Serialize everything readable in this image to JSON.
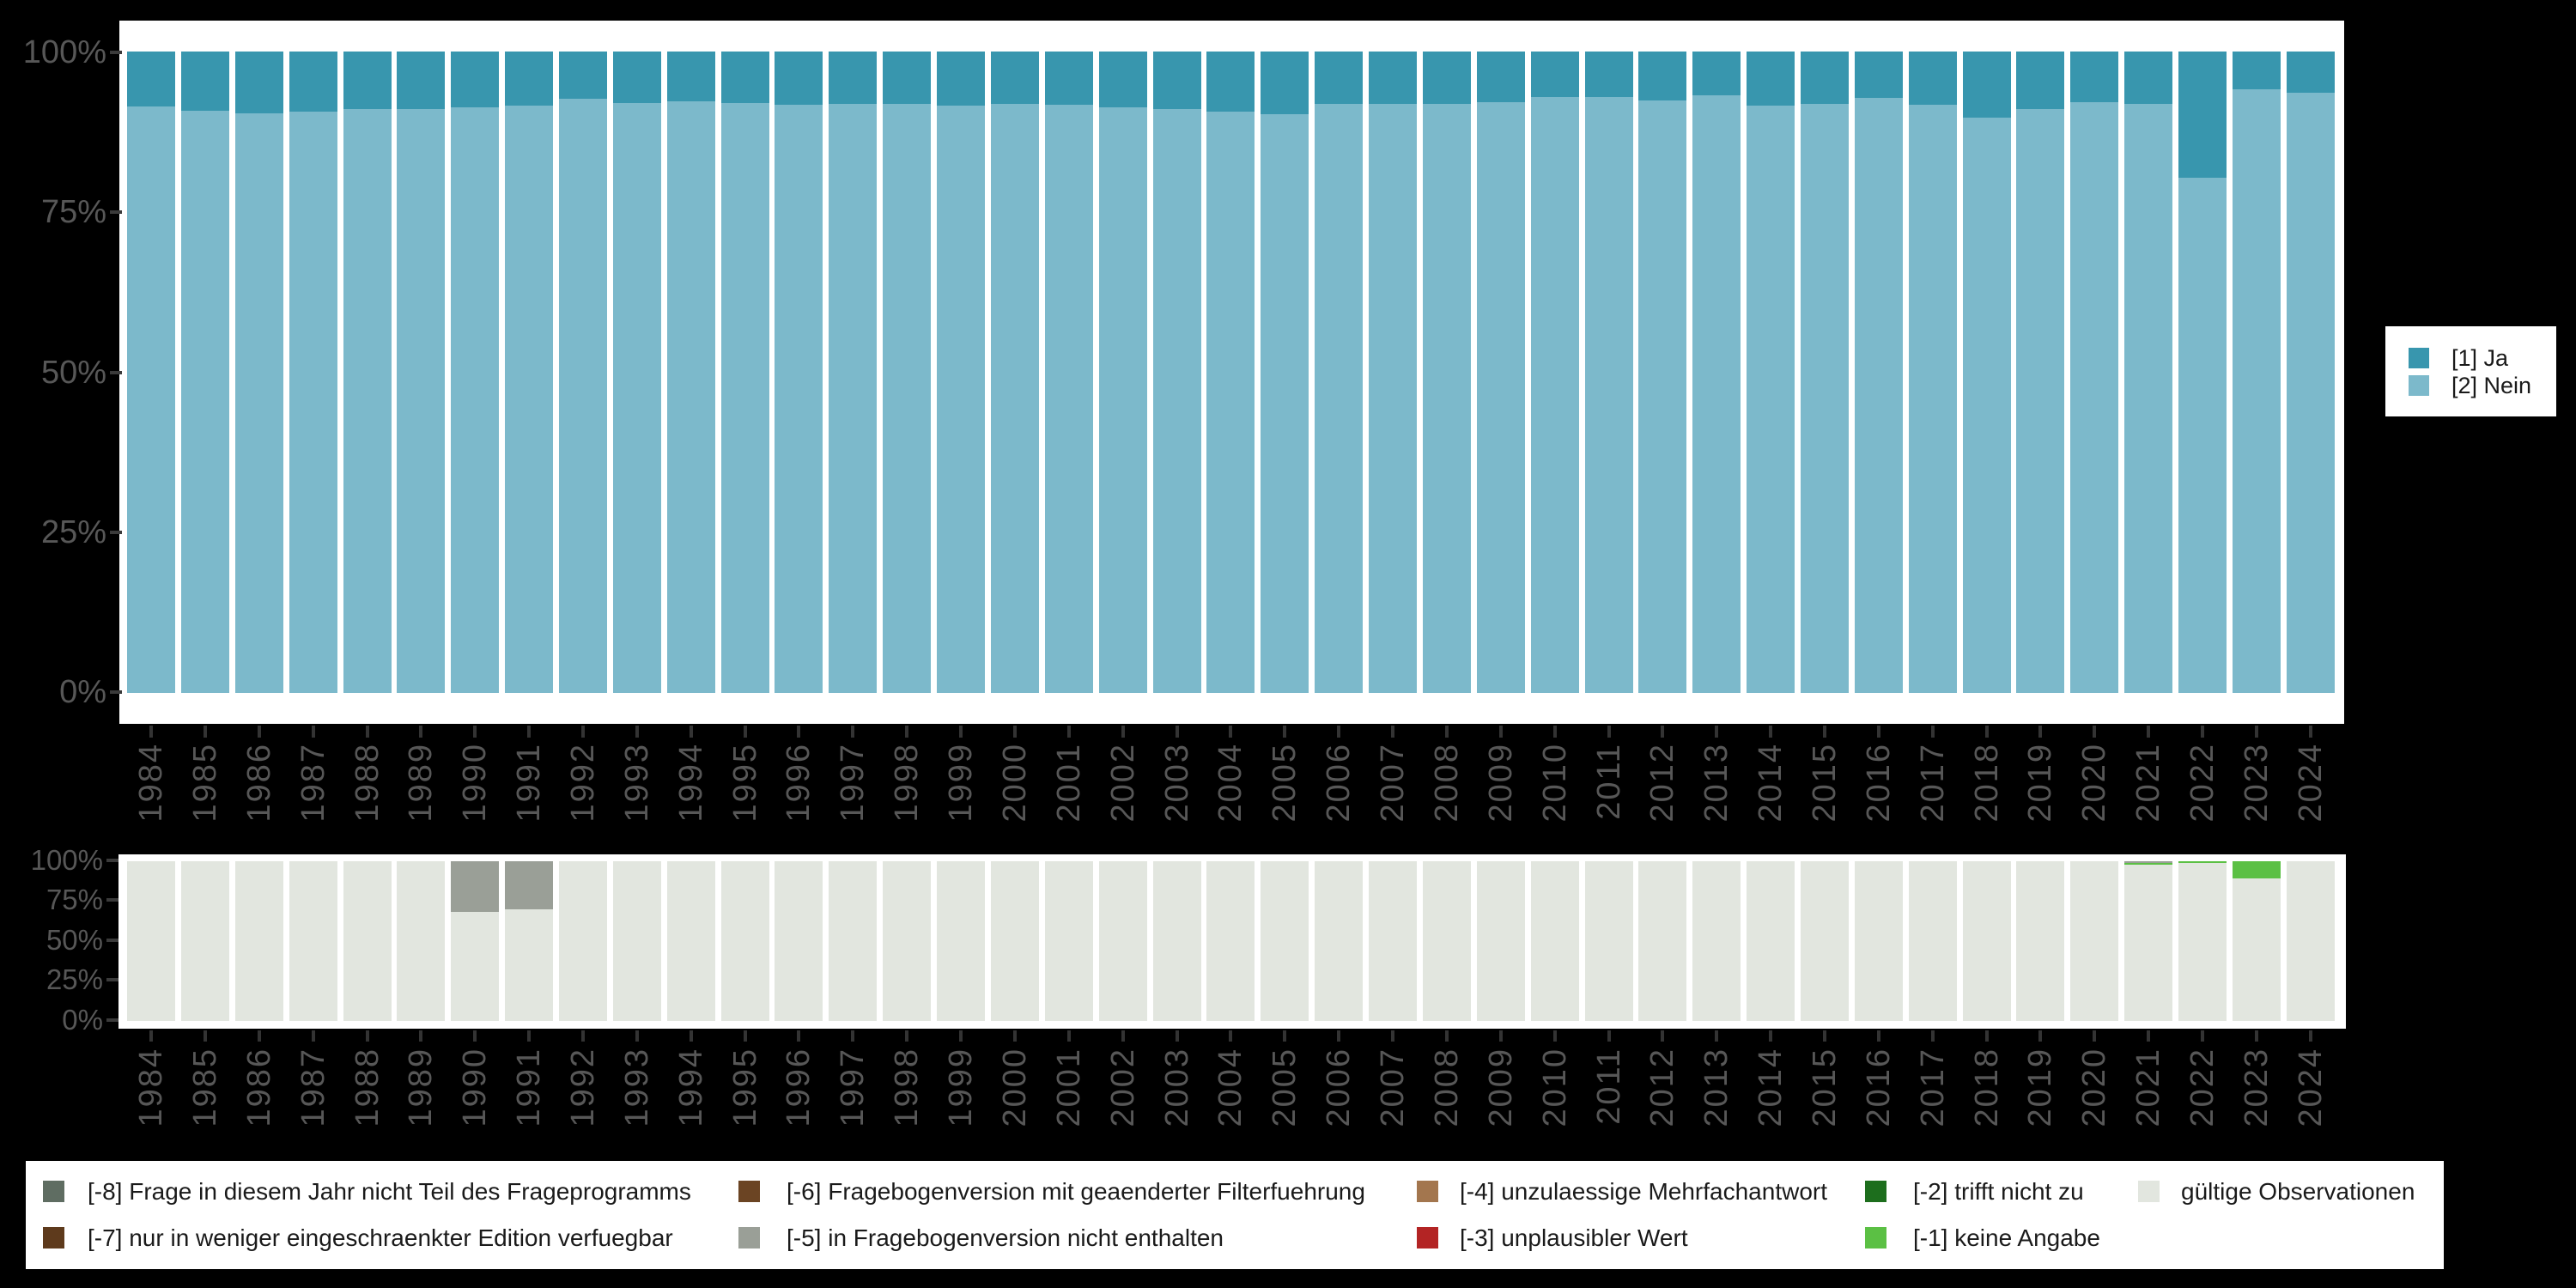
{
  "app": {
    "background": "#000000",
    "panel_background": "#ffffff",
    "axis_text_color": "#575757"
  },
  "chart_data": [
    {
      "name": "main-distribution",
      "type": "bar",
      "stacking": "percent",
      "orientation": "vertical",
      "grid": false,
      "legend_position": "right",
      "ylabel": "",
      "xlabel": "",
      "y_ticks": [
        "0%",
        "25%",
        "50%",
        "75%",
        "100%"
      ],
      "ylim": [
        0,
        100
      ],
      "categories": [
        "1984",
        "1985",
        "1986",
        "1987",
        "1988",
        "1989",
        "1990",
        "1991",
        "1992",
        "1993",
        "1994",
        "1995",
        "1996",
        "1997",
        "1998",
        "1999",
        "2000",
        "2001",
        "2002",
        "2003",
        "2004",
        "2005",
        "2006",
        "2007",
        "2008",
        "2009",
        "2010",
        "2011",
        "2012",
        "2013",
        "2014",
        "2015",
        "2016",
        "2017",
        "2018",
        "2019",
        "2020",
        "2021",
        "2022",
        "2023",
        "2024"
      ],
      "series": [
        {
          "name": "[1] Ja",
          "color": "#3896ae",
          "values": [
            8.5,
            9.2,
            9.6,
            9.3,
            8.9,
            9.0,
            8.7,
            8.4,
            7.4,
            8.0,
            7.7,
            8.0,
            8.3,
            8.1,
            8.2,
            8.4,
            8.2,
            8.3,
            8.7,
            8.9,
            9.3,
            9.7,
            8.2,
            8.1,
            8.2,
            7.9,
            7.1,
            7.1,
            7.6,
            6.8,
            8.4,
            8.1,
            7.2,
            8.3,
            10.3,
            8.9,
            7.9,
            8.2,
            19.7,
            5.9,
            6.4
          ]
        },
        {
          "name": "[2] Nein",
          "color": "#7cb9cb",
          "values": [
            91.5,
            90.8,
            90.4,
            90.7,
            91.1,
            91.0,
            91.3,
            91.6,
            92.6,
            92.0,
            92.3,
            92.0,
            91.7,
            91.9,
            91.8,
            91.6,
            91.8,
            91.7,
            91.3,
            91.1,
            90.7,
            90.3,
            91.8,
            91.9,
            91.8,
            92.1,
            92.9,
            92.9,
            92.4,
            93.2,
            91.6,
            91.9,
            92.8,
            91.7,
            89.7,
            91.1,
            92.1,
            91.8,
            80.3,
            94.1,
            93.6
          ]
        }
      ]
    },
    {
      "name": "missing-values",
      "type": "bar",
      "stacking": "percent",
      "orientation": "vertical",
      "grid": false,
      "legend_position": "bottom",
      "y_ticks": [
        "0%",
        "25%",
        "50%",
        "75%",
        "100%"
      ],
      "ylim": [
        0,
        100
      ],
      "categories": [
        "1984",
        "1985",
        "1986",
        "1987",
        "1988",
        "1989",
        "1990",
        "1991",
        "1992",
        "1993",
        "1994",
        "1995",
        "1996",
        "1997",
        "1998",
        "1999",
        "2000",
        "2001",
        "2002",
        "2003",
        "2004",
        "2005",
        "2006",
        "2007",
        "2008",
        "2009",
        "2010",
        "2011",
        "2012",
        "2013",
        "2014",
        "2015",
        "2016",
        "2017",
        "2018",
        "2019",
        "2020",
        "2021",
        "2022",
        "2023",
        "2024"
      ],
      "series": [
        {
          "name": "[-5] in Fragebogenversion nicht enthalten",
          "color": "#9a9f97",
          "values": [
            0,
            0,
            0,
            0,
            0,
            0,
            31.7,
            30.0,
            0,
            0,
            0,
            0,
            0,
            0,
            0,
            0,
            0,
            0,
            0,
            0,
            0,
            0,
            0,
            0,
            0,
            0,
            0,
            0,
            0,
            0,
            0,
            0,
            0,
            0,
            0,
            0,
            0,
            1.2,
            0,
            0,
            0
          ]
        },
        {
          "name": "[-1] keine Angabe",
          "color": "#5bc044",
          "values": [
            0,
            0,
            0,
            0,
            0,
            0,
            0,
            0,
            0,
            0,
            0,
            0,
            0,
            0,
            0,
            0,
            0,
            0,
            0,
            0,
            0,
            0,
            0,
            0,
            0,
            0,
            0,
            0,
            0,
            0,
            0,
            0,
            0,
            0,
            0,
            0,
            0,
            1.0,
            1.3,
            10.7,
            0
          ]
        },
        {
          "name": "gültige Observationen",
          "color": "#e2e6df",
          "values": [
            100,
            100,
            100,
            100,
            100,
            100,
            68.3,
            70.0,
            100,
            100,
            100,
            100,
            100,
            100,
            100,
            100,
            100,
            100,
            100,
            100,
            100,
            100,
            100,
            100,
            100,
            100,
            100,
            100,
            100,
            100,
            100,
            100,
            100,
            100,
            100,
            100,
            100,
            97.8,
            98.7,
            89.3,
            100
          ]
        }
      ]
    }
  ],
  "main_legend": {
    "entries": [
      {
        "label": "[1] Ja",
        "color": "#3896ae"
      },
      {
        "label": "[2] Nein",
        "color": "#7cb9cb"
      }
    ]
  },
  "missing_legend": {
    "entries": [
      {
        "label": "[-8] Frage in diesem Jahr nicht Teil des Frageprogramms",
        "color": "#5f6d62"
      },
      {
        "label": "[-7] nur in weniger eingeschraenkter Edition verfuegbar",
        "color": "#5e3a1c"
      },
      {
        "label": "[-6] Fragebogenversion mit geaenderter Filterfuehrung",
        "color": "#6b4423"
      },
      {
        "label": "[-5] in Fragebogenversion nicht enthalten",
        "color": "#9a9f97"
      },
      {
        "label": "[-4] unzulaessige Mehrfachantwort",
        "color": "#a3764e"
      },
      {
        "label": "[-3] unplausibler Wert",
        "color": "#b32424"
      },
      {
        "label": "[-2] trifft nicht zu",
        "color": "#1d6e1d"
      },
      {
        "label": "[-1] keine Angabe",
        "color": "#5bc044"
      },
      {
        "label": "gültige Observationen",
        "color": "#e2e6df"
      }
    ]
  }
}
